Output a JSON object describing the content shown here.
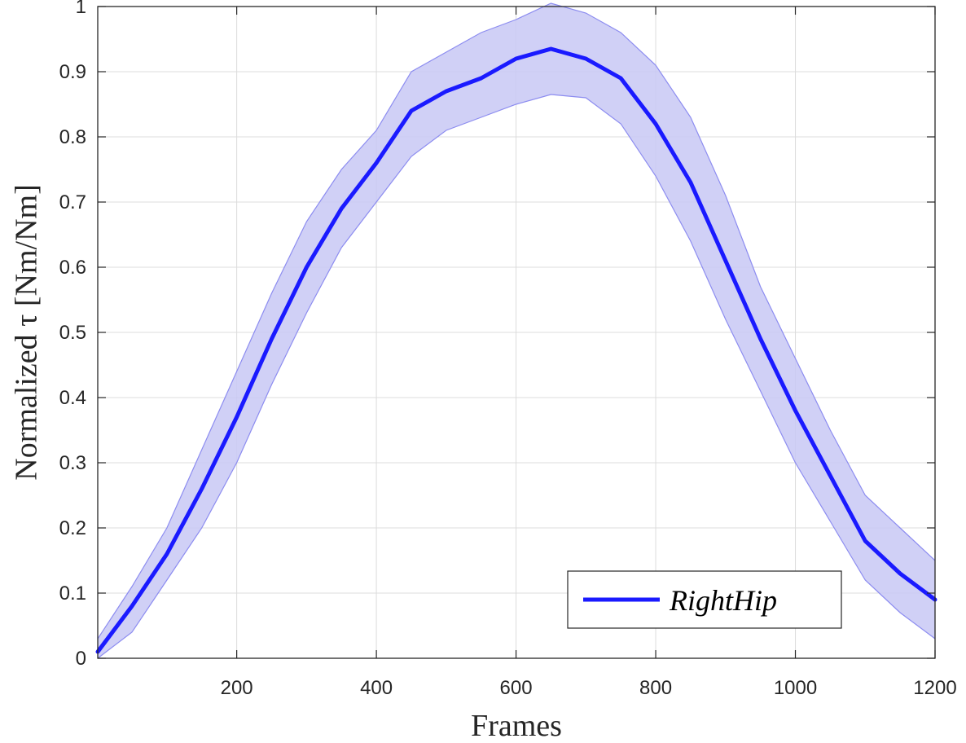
{
  "chart_data": {
    "type": "line",
    "xlabel": "Frames",
    "ylabel": "Normalized τ [Nm/Nm]",
    "xlim": [
      1,
      1200
    ],
    "ylim": [
      0,
      1
    ],
    "x_ticks": [
      200,
      400,
      600,
      800,
      1000,
      1200
    ],
    "x_tick_labels": [
      "200",
      "400",
      "600",
      "800",
      "1000",
      "1200"
    ],
    "y_ticks": [
      0,
      0.1,
      0.2,
      0.3,
      0.4,
      0.5,
      0.6,
      0.7,
      0.8,
      0.9,
      1
    ],
    "y_tick_labels": [
      "0",
      "0.1",
      "0.2",
      "0.3",
      "0.4",
      "0.5",
      "0.6",
      "0.7",
      "0.8",
      "0.9",
      "1"
    ],
    "grid": true,
    "legend_position": "bottom-right",
    "series": [
      {
        "name": "RightHip",
        "color": "#1a1aff",
        "band_color": "#c8c8f5",
        "band_edge_color": "#8c8cf0",
        "x": [
          1,
          50,
          100,
          150,
          200,
          250,
          300,
          350,
          400,
          450,
          500,
          550,
          600,
          650,
          700,
          750,
          800,
          850,
          900,
          950,
          1000,
          1050,
          1100,
          1150,
          1200
        ],
        "mean": [
          0.01,
          0.08,
          0.16,
          0.26,
          0.37,
          0.49,
          0.6,
          0.69,
          0.76,
          0.84,
          0.87,
          0.89,
          0.92,
          0.935,
          0.92,
          0.89,
          0.82,
          0.73,
          0.61,
          0.49,
          0.38,
          0.28,
          0.18,
          0.13,
          0.09
        ],
        "upper": [
          0.03,
          0.11,
          0.2,
          0.32,
          0.44,
          0.56,
          0.67,
          0.75,
          0.81,
          0.9,
          0.93,
          0.96,
          0.98,
          1.005,
          0.99,
          0.96,
          0.91,
          0.83,
          0.71,
          0.57,
          0.46,
          0.35,
          0.25,
          0.2,
          0.15
        ],
        "lower": [
          0.0,
          0.04,
          0.12,
          0.2,
          0.3,
          0.42,
          0.53,
          0.63,
          0.7,
          0.77,
          0.81,
          0.83,
          0.85,
          0.865,
          0.86,
          0.82,
          0.74,
          0.64,
          0.52,
          0.41,
          0.3,
          0.21,
          0.12,
          0.07,
          0.03
        ]
      }
    ]
  }
}
